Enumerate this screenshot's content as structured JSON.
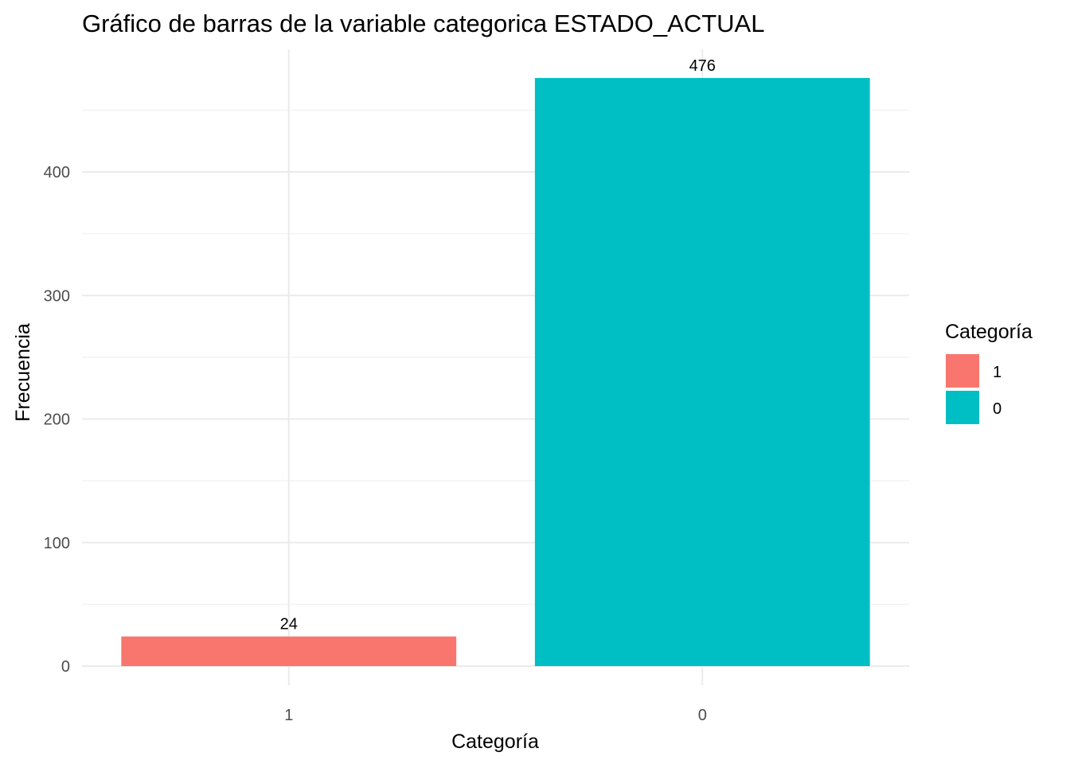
{
  "chart_data": {
    "type": "bar",
    "title": "Gráfico de barras de la variable categorica ESTADO_ACTUAL",
    "xlabel": "Categoría",
    "ylabel": "Frecuencia",
    "categories": [
      "1",
      "0"
    ],
    "values": [
      24,
      476
    ],
    "colors": [
      "#F8766D",
      "#00BFC4"
    ],
    "ylim": [
      0,
      500
    ],
    "y_ticks": [
      0,
      100,
      200,
      300,
      400
    ],
    "grid": true,
    "legend": {
      "title": "Categoría",
      "position": "right",
      "entries": [
        {
          "label": "1",
          "color": "#F8766D"
        },
        {
          "label": "0",
          "color": "#00BFC4"
        }
      ]
    }
  }
}
